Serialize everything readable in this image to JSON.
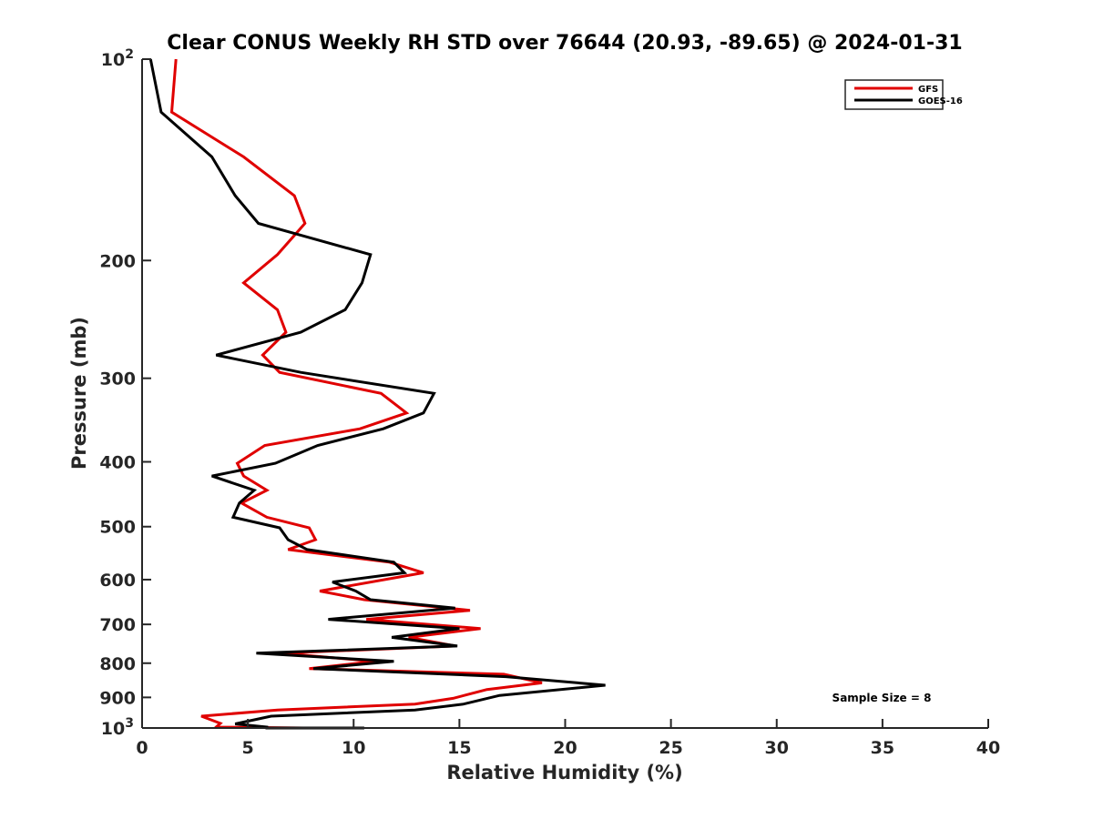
{
  "chart_data": {
    "type": "line",
    "title": "Clear CONUS Weekly RH STD over 76644 (20.93, -89.65) @ 2024-01-31",
    "xlabel": "Relative Humidity (%)",
    "ylabel": "Pressure (mb)",
    "xlim": [
      0,
      40
    ],
    "ylim": [
      100,
      1000
    ],
    "yscale": "log",
    "yreversed": true,
    "grid": false,
    "x_ticks": [
      0,
      5,
      10,
      15,
      20,
      25,
      30,
      35,
      40
    ],
    "x_tick_labels": [
      "0",
      "5",
      "10",
      "15",
      "20",
      "25",
      "30",
      "35",
      "40"
    ],
    "y_ticks": [
      100,
      200,
      300,
      400,
      500,
      600,
      700,
      800,
      900,
      1000
    ],
    "y_tick_labels": [
      {
        "base": "10",
        "exp": "2"
      },
      {
        "text": "200"
      },
      {
        "text": "300"
      },
      {
        "text": "400"
      },
      {
        "text": "500"
      },
      {
        "text": "600"
      },
      {
        "text": "700"
      },
      {
        "text": "800"
      },
      {
        "text": "900"
      },
      {
        "base": "10",
        "exp": "3"
      }
    ],
    "legend": {
      "placement": "top-right",
      "entries": [
        {
          "label": "GFS",
          "color": "#e00000"
        },
        {
          "label": "GOES-16",
          "color": "#000000"
        }
      ]
    },
    "annotation": "Sample Size = 8",
    "series": [
      {
        "name": "GFS",
        "color": "#e00000",
        "rh": [
          1.6,
          1.4,
          4.8,
          7.2,
          7.7,
          6.4,
          4.8,
          6.4,
          6.8,
          5.7,
          6.5,
          11.3,
          12.5,
          10.3,
          5.8,
          4.5,
          4.8,
          5.9,
          4.7,
          5.9,
          7.9,
          8.2,
          6.9,
          11.7,
          13.3,
          8.4,
          10.5,
          15.5,
          10.6,
          16.0,
          12.6,
          14.8,
          6.6,
          11.0,
          7.9,
          17.1,
          18.9,
          16.3,
          14.7,
          12.9,
          6.4,
          2.8,
          3.7,
          3.5,
          7.6
        ],
        "pressure": [
          100,
          120,
          140,
          160,
          176,
          196,
          216,
          237,
          256,
          277,
          294,
          316,
          338,
          357,
          378,
          402,
          420,
          441,
          461,
          484,
          502,
          523,
          541,
          565,
          586,
          624,
          643,
          667,
          688,
          710,
          732,
          754,
          773,
          795,
          815,
          831,
          856,
          876,
          903,
          921,
          940,
          960,
          984,
          997,
          1000
        ]
      },
      {
        "name": "GOES-16",
        "color": "#000000",
        "rh": [
          0.4,
          0.9,
          3.3,
          4.4,
          5.5,
          10.8,
          10.4,
          9.6,
          7.5,
          3.5,
          7.5,
          13.8,
          13.3,
          11.4,
          8.3,
          6.3,
          3.3,
          5.3,
          4.6,
          4.3,
          6.5,
          6.9,
          7.8,
          11.9,
          12.4,
          9.0,
          10.1,
          10.8,
          14.8,
          8.8,
          15.0,
          11.8,
          14.9,
          5.4,
          11.9,
          8.1,
          17.2,
          21.9,
          16.9,
          15.2,
          12.9,
          6.1,
          4.4,
          5.9,
          5.9,
          10.5
        ],
        "pressure": [
          100,
          120,
          140,
          160,
          176,
          196,
          216,
          237,
          256,
          277,
          294,
          316,
          338,
          357,
          378,
          402,
          420,
          441,
          461,
          484,
          502,
          523,
          541,
          565,
          586,
          605,
          624,
          643,
          662,
          688,
          710,
          732,
          754,
          773,
          795,
          815,
          838,
          863,
          894,
          921,
          940,
          960,
          986,
          997,
          1000,
          1000
        ]
      }
    ]
  }
}
